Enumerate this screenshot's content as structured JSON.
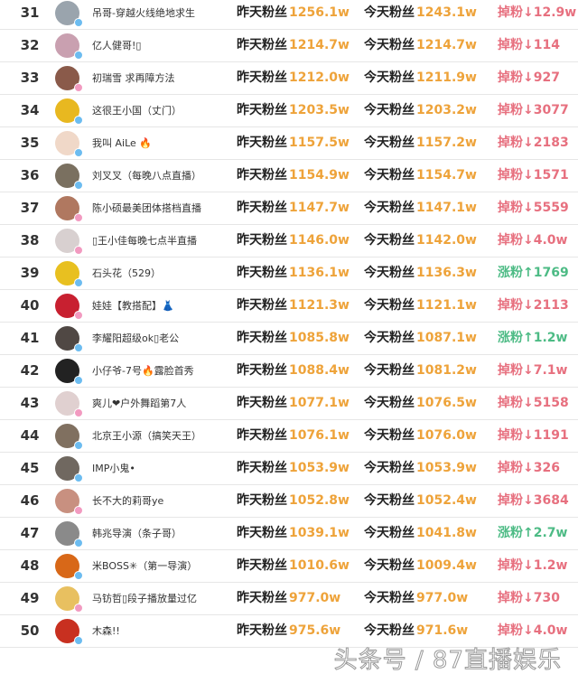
{
  "labels": {
    "yesterday": "昨天粉丝",
    "today": "今天粉丝",
    "down": "掉粉↓",
    "up": "涨粉↑"
  },
  "colors": {
    "value": "#eea33a",
    "down": "#e7707f",
    "up": "#4dbb85",
    "verified_blue": "#6cbcf0",
    "verified_pink": "#f29ac0"
  },
  "rows": [
    {
      "rank": "31",
      "name": "吊哥-穿越火线绝地求生",
      "yesterday": "1256.1w",
      "today": "1243.1w",
      "dir": "down",
      "change": "12.9w",
      "badge": "blue",
      "avatar": "#9aa4ad"
    },
    {
      "rank": "32",
      "name": "亿人健哥!▯",
      "yesterday": "1214.7w",
      "today": "1214.7w",
      "dir": "down",
      "change": "114",
      "badge": "blue",
      "avatar": "#c9a0b0"
    },
    {
      "rank": "33",
      "name": "初瑞雪 求再障方法",
      "yesterday": "1212.0w",
      "today": "1211.9w",
      "dir": "down",
      "change": "927",
      "badge": "pink",
      "avatar": "#8a5a4a"
    },
    {
      "rank": "34",
      "name": "这很王小国（丈门）",
      "yesterday": "1203.5w",
      "today": "1203.2w",
      "dir": "down",
      "change": "3077",
      "badge": "blue",
      "avatar": "#e8b820"
    },
    {
      "rank": "35",
      "name": "我叫 AiLe 🔥",
      "yesterday": "1157.5w",
      "today": "1157.2w",
      "dir": "down",
      "change": "2183",
      "badge": "blue",
      "avatar": "#f0d8c8"
    },
    {
      "rank": "36",
      "name": "刘叉叉（每晚八点直播）",
      "yesterday": "1154.9w",
      "today": "1154.7w",
      "dir": "down",
      "change": "1571",
      "badge": "blue",
      "avatar": "#7a7060"
    },
    {
      "rank": "37",
      "name": "陈小硕最美团体搭档直播",
      "yesterday": "1147.7w",
      "today": "1147.1w",
      "dir": "down",
      "change": "5559",
      "badge": "pink",
      "avatar": "#b07860"
    },
    {
      "rank": "38",
      "name": "▯王小佳每晚七点半直播",
      "yesterday": "1146.0w",
      "today": "1142.0w",
      "dir": "down",
      "change": "4.0w",
      "badge": "pink",
      "avatar": "#d8d0d0"
    },
    {
      "rank": "39",
      "name": "石头花（529）",
      "yesterday": "1136.1w",
      "today": "1136.3w",
      "dir": "up",
      "change": "1769",
      "badge": "blue",
      "avatar": "#e8c020"
    },
    {
      "rank": "40",
      "name": "娃娃【教搭配】👗",
      "yesterday": "1121.3w",
      "today": "1121.1w",
      "dir": "down",
      "change": "2113",
      "badge": "pink",
      "avatar": "#c82030"
    },
    {
      "rank": "41",
      "name": "李耀阳超级ok▯老公",
      "yesterday": "1085.8w",
      "today": "1087.1w",
      "dir": "up",
      "change": "1.2w",
      "badge": "blue",
      "avatar": "#504844"
    },
    {
      "rank": "42",
      "name": "小仔爷-7号🔥露脸首秀",
      "yesterday": "1088.4w",
      "today": "1081.2w",
      "dir": "down",
      "change": "7.1w",
      "badge": "blue",
      "avatar": "#222222"
    },
    {
      "rank": "43",
      "name": "爽儿❤户外舞蹈第7人",
      "yesterday": "1077.1w",
      "today": "1076.5w",
      "dir": "down",
      "change": "5158",
      "badge": "pink",
      "avatar": "#e0d0d0"
    },
    {
      "rank": "44",
      "name": "北京王小源（搞笑天王）",
      "yesterday": "1076.1w",
      "today": "1076.0w",
      "dir": "down",
      "change": "1191",
      "badge": "blue",
      "avatar": "#807060"
    },
    {
      "rank": "45",
      "name": "IMP小鬼•",
      "yesterday": "1053.9w",
      "today": "1053.9w",
      "dir": "down",
      "change": "326",
      "badge": "blue",
      "avatar": "#706860"
    },
    {
      "rank": "46",
      "name": "长不大的莉哥ye",
      "yesterday": "1052.8w",
      "today": "1052.4w",
      "dir": "down",
      "change": "3684",
      "badge": "pink",
      "avatar": "#c89080"
    },
    {
      "rank": "47",
      "name": "韩兆导演（条子哥）",
      "yesterday": "1039.1w",
      "today": "1041.8w",
      "dir": "up",
      "change": "2.7w",
      "badge": "blue",
      "avatar": "#8a8a8a"
    },
    {
      "rank": "48",
      "name": "米BOSS✳（第一导演）",
      "yesterday": "1010.6w",
      "today": "1009.4w",
      "dir": "down",
      "change": "1.2w",
      "badge": "blue",
      "avatar": "#d86818"
    },
    {
      "rank": "49",
      "name": "马钫哲▯段子播放量过亿",
      "yesterday": "977.0w",
      "today": "977.0w",
      "dir": "down",
      "change": "730",
      "badge": "pink",
      "avatar": "#e8c060"
    },
    {
      "rank": "50",
      "name": "木森!!",
      "yesterday": "975.6w",
      "today": "971.6w",
      "dir": "down",
      "change": "4.0w",
      "badge": "blue",
      "avatar": "#c83020"
    }
  ],
  "watermark": "头条号 / 87直播娱乐"
}
